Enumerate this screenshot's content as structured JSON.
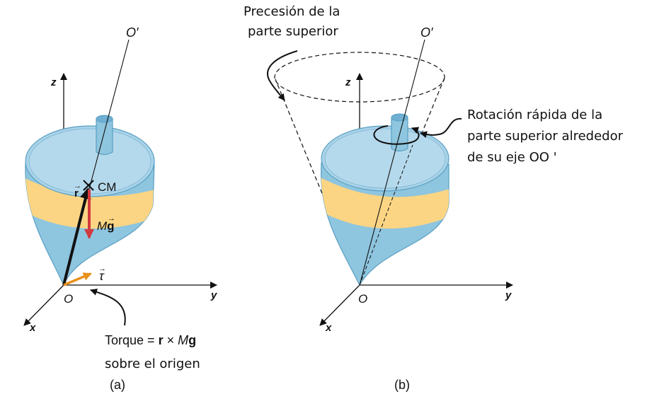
{
  "panel_a": {
    "axis_z": "z",
    "axis_y": "y",
    "axis_x": "x",
    "origin": "O",
    "spin_axis": "O′",
    "cm": "CM",
    "r_vector": "r",
    "weight_prefix": "M",
    "weight_vector": "g",
    "tau": "τ",
    "torque_label": "Torque =",
    "torque_r": "r",
    "torque_times": "×",
    "torque_m": "M",
    "torque_g": "g",
    "torque_line2": "sobre el origen",
    "caption": "(a)"
  },
  "panel_b": {
    "axis_z": "z",
    "axis_y": "y",
    "axis_x": "x",
    "origin": "O",
    "spin_axis": "O′",
    "precession_line1": "Precesión de la",
    "precession_line2": "parte superior",
    "rotation_line1": "Rotación rápida de la",
    "rotation_line2": "parte superior alrededor",
    "rotation_line3": "de su eje OO '",
    "caption": "(b)"
  },
  "colors": {
    "top_blue": "#8ec5df",
    "top_blue_dark": "#5a9fc3",
    "band_yellow": "#fbd583",
    "arrow_red": "#d33a3f",
    "arrow_orange": "#e8901c",
    "ink": "#111111"
  }
}
